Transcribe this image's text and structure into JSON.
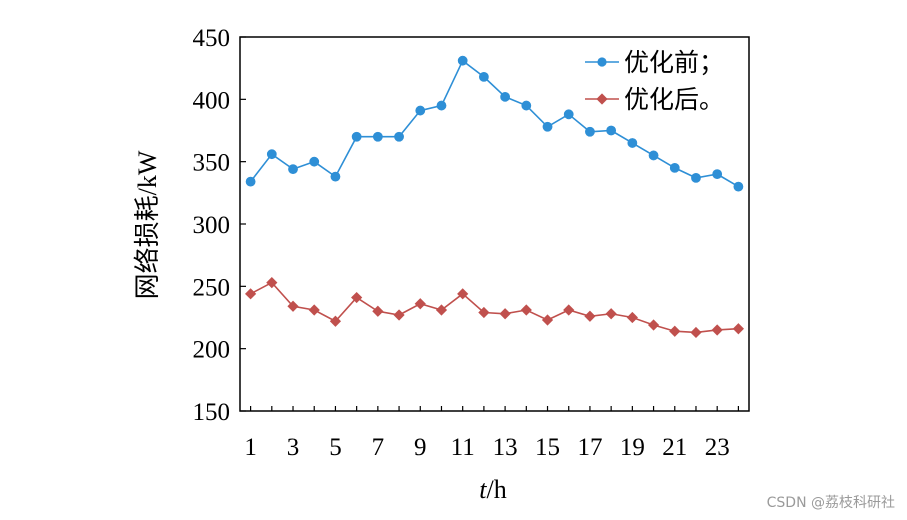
{
  "chart_data": {
    "type": "line",
    "x": [
      1,
      2,
      3,
      4,
      5,
      6,
      7,
      8,
      9,
      10,
      11,
      12,
      13,
      14,
      15,
      16,
      17,
      18,
      19,
      20,
      21,
      22,
      23,
      24
    ],
    "x_tick_labels": [
      "1",
      "3",
      "5",
      "7",
      "9",
      "11",
      "13",
      "15",
      "17",
      "19",
      "21",
      "23"
    ],
    "y_tick_labels": [
      "150",
      "200",
      "250",
      "300",
      "350",
      "400",
      "450"
    ],
    "ylim": [
      150,
      450
    ],
    "xlim": [
      0.5,
      24.5
    ],
    "xlabel_italic": "t",
    "xlabel_unit": "/h",
    "ylabel": "网络损耗/kW",
    "grid": false,
    "legend_placement": "top-right",
    "series": [
      {
        "name": "优化前；",
        "color": "#2e8fd6",
        "marker": "circle",
        "values": [
          334,
          356,
          344,
          350,
          338,
          370,
          370,
          370,
          391,
          395,
          431,
          418,
          402,
          395,
          378,
          388,
          374,
          375,
          365,
          355,
          345,
          337,
          340,
          330
        ]
      },
      {
        "name": "优化后。",
        "color": "#c0504d",
        "marker": "diamond",
        "values": [
          244,
          253,
          234,
          231,
          222,
          241,
          230,
          227,
          236,
          231,
          244,
          229,
          228,
          231,
          223,
          231,
          226,
          228,
          225,
          219,
          214,
          213,
          215,
          216
        ]
      }
    ]
  },
  "watermark": "CSDN @荔枝科研社"
}
